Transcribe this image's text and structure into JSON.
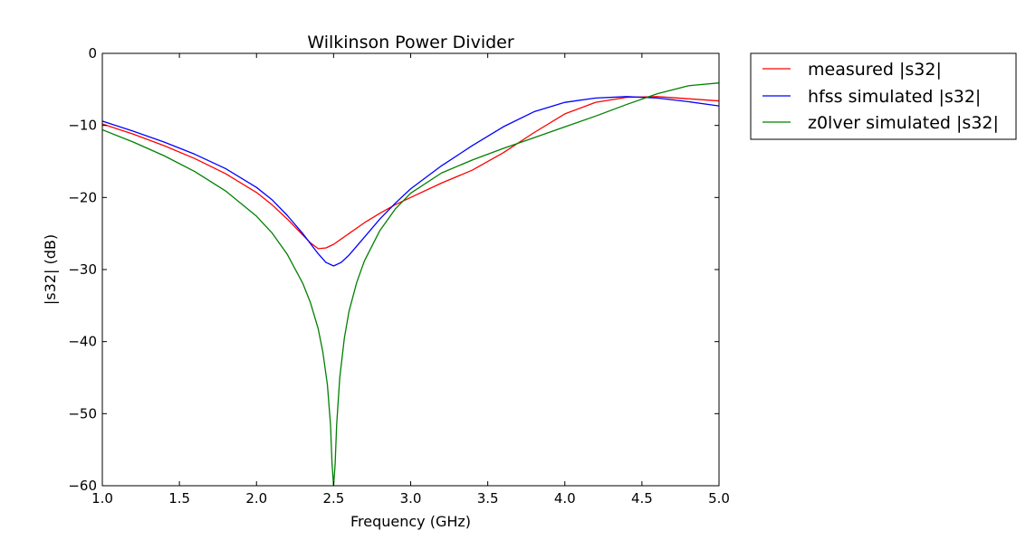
{
  "chart_data": {
    "type": "line",
    "title": "Wilkinson Power Divider",
    "xlabel": "Frequency (GHz)",
    "ylabel": "|s32| (dB)",
    "xlim": [
      1.0,
      5.0
    ],
    "ylim": [
      -60,
      0
    ],
    "x_ticks": [
      "1.0",
      "1.5",
      "2.0",
      "2.5",
      "3.0",
      "3.5",
      "4.0",
      "4.5",
      "5.0"
    ],
    "y_ticks": [
      "0",
      "−10",
      "−20",
      "−30",
      "−40",
      "−50",
      "−60"
    ],
    "grid": false,
    "legend_position": "outside-top-right",
    "series": [
      {
        "name": "measured |s32|",
        "color": "#ff0000",
        "x": [
          1.0,
          1.2,
          1.4,
          1.6,
          1.8,
          2.0,
          2.1,
          2.2,
          2.3,
          2.35,
          2.4,
          2.45,
          2.5,
          2.6,
          2.7,
          2.8,
          2.9,
          3.0,
          3.2,
          3.4,
          3.6,
          3.8,
          4.0,
          4.2,
          4.4,
          4.6,
          4.8,
          5.0
        ],
        "y": [
          -9.8,
          -11.2,
          -12.8,
          -14.6,
          -16.7,
          -19.3,
          -21.0,
          -23.0,
          -25.2,
          -26.3,
          -27.1,
          -27.0,
          -26.5,
          -25.0,
          -23.5,
          -22.2,
          -21.0,
          -20.0,
          -18.0,
          -16.2,
          -13.8,
          -11.0,
          -8.4,
          -6.8,
          -6.1,
          -6.0,
          -6.3,
          -6.6
        ]
      },
      {
        "name": "hfss simulated |s32|",
        "color": "#0000ff",
        "x": [
          1.0,
          1.2,
          1.4,
          1.6,
          1.8,
          2.0,
          2.1,
          2.2,
          2.3,
          2.4,
          2.45,
          2.5,
          2.55,
          2.6,
          2.7,
          2.8,
          2.9,
          3.0,
          3.2,
          3.4,
          3.6,
          3.8,
          4.0,
          4.2,
          4.4,
          4.6,
          4.8,
          5.0
        ],
        "y": [
          -9.4,
          -10.8,
          -12.3,
          -14.0,
          -16.0,
          -18.6,
          -20.3,
          -22.5,
          -25.0,
          -27.8,
          -29.0,
          -29.5,
          -29.0,
          -28.0,
          -25.5,
          -23.0,
          -20.8,
          -18.8,
          -15.6,
          -12.8,
          -10.2,
          -8.1,
          -6.8,
          -6.2,
          -6.0,
          -6.2,
          -6.7,
          -7.3
        ]
      },
      {
        "name": "z0lver simulated |s32|",
        "color": "#008000",
        "x": [
          1.0,
          1.2,
          1.4,
          1.6,
          1.8,
          2.0,
          2.1,
          2.2,
          2.3,
          2.35,
          2.4,
          2.43,
          2.46,
          2.48,
          2.49,
          2.5,
          2.51,
          2.52,
          2.54,
          2.57,
          2.6,
          2.65,
          2.7,
          2.8,
          2.9,
          3.0,
          3.2,
          3.4,
          3.6,
          3.8,
          4.0,
          4.2,
          4.4,
          4.6,
          4.8,
          5.0
        ],
        "y": [
          -10.6,
          -12.3,
          -14.2,
          -16.4,
          -19.1,
          -22.6,
          -24.9,
          -27.9,
          -31.9,
          -34.6,
          -38.2,
          -41.4,
          -46.0,
          -51.5,
          -57.0,
          -60.0,
          -57.0,
          -51.5,
          -45.0,
          -39.5,
          -35.8,
          -31.8,
          -28.8,
          -24.6,
          -21.6,
          -19.4,
          -16.6,
          -14.8,
          -13.2,
          -11.7,
          -10.2,
          -8.7,
          -7.1,
          -5.6,
          -4.5,
          -4.1
        ]
      }
    ]
  }
}
